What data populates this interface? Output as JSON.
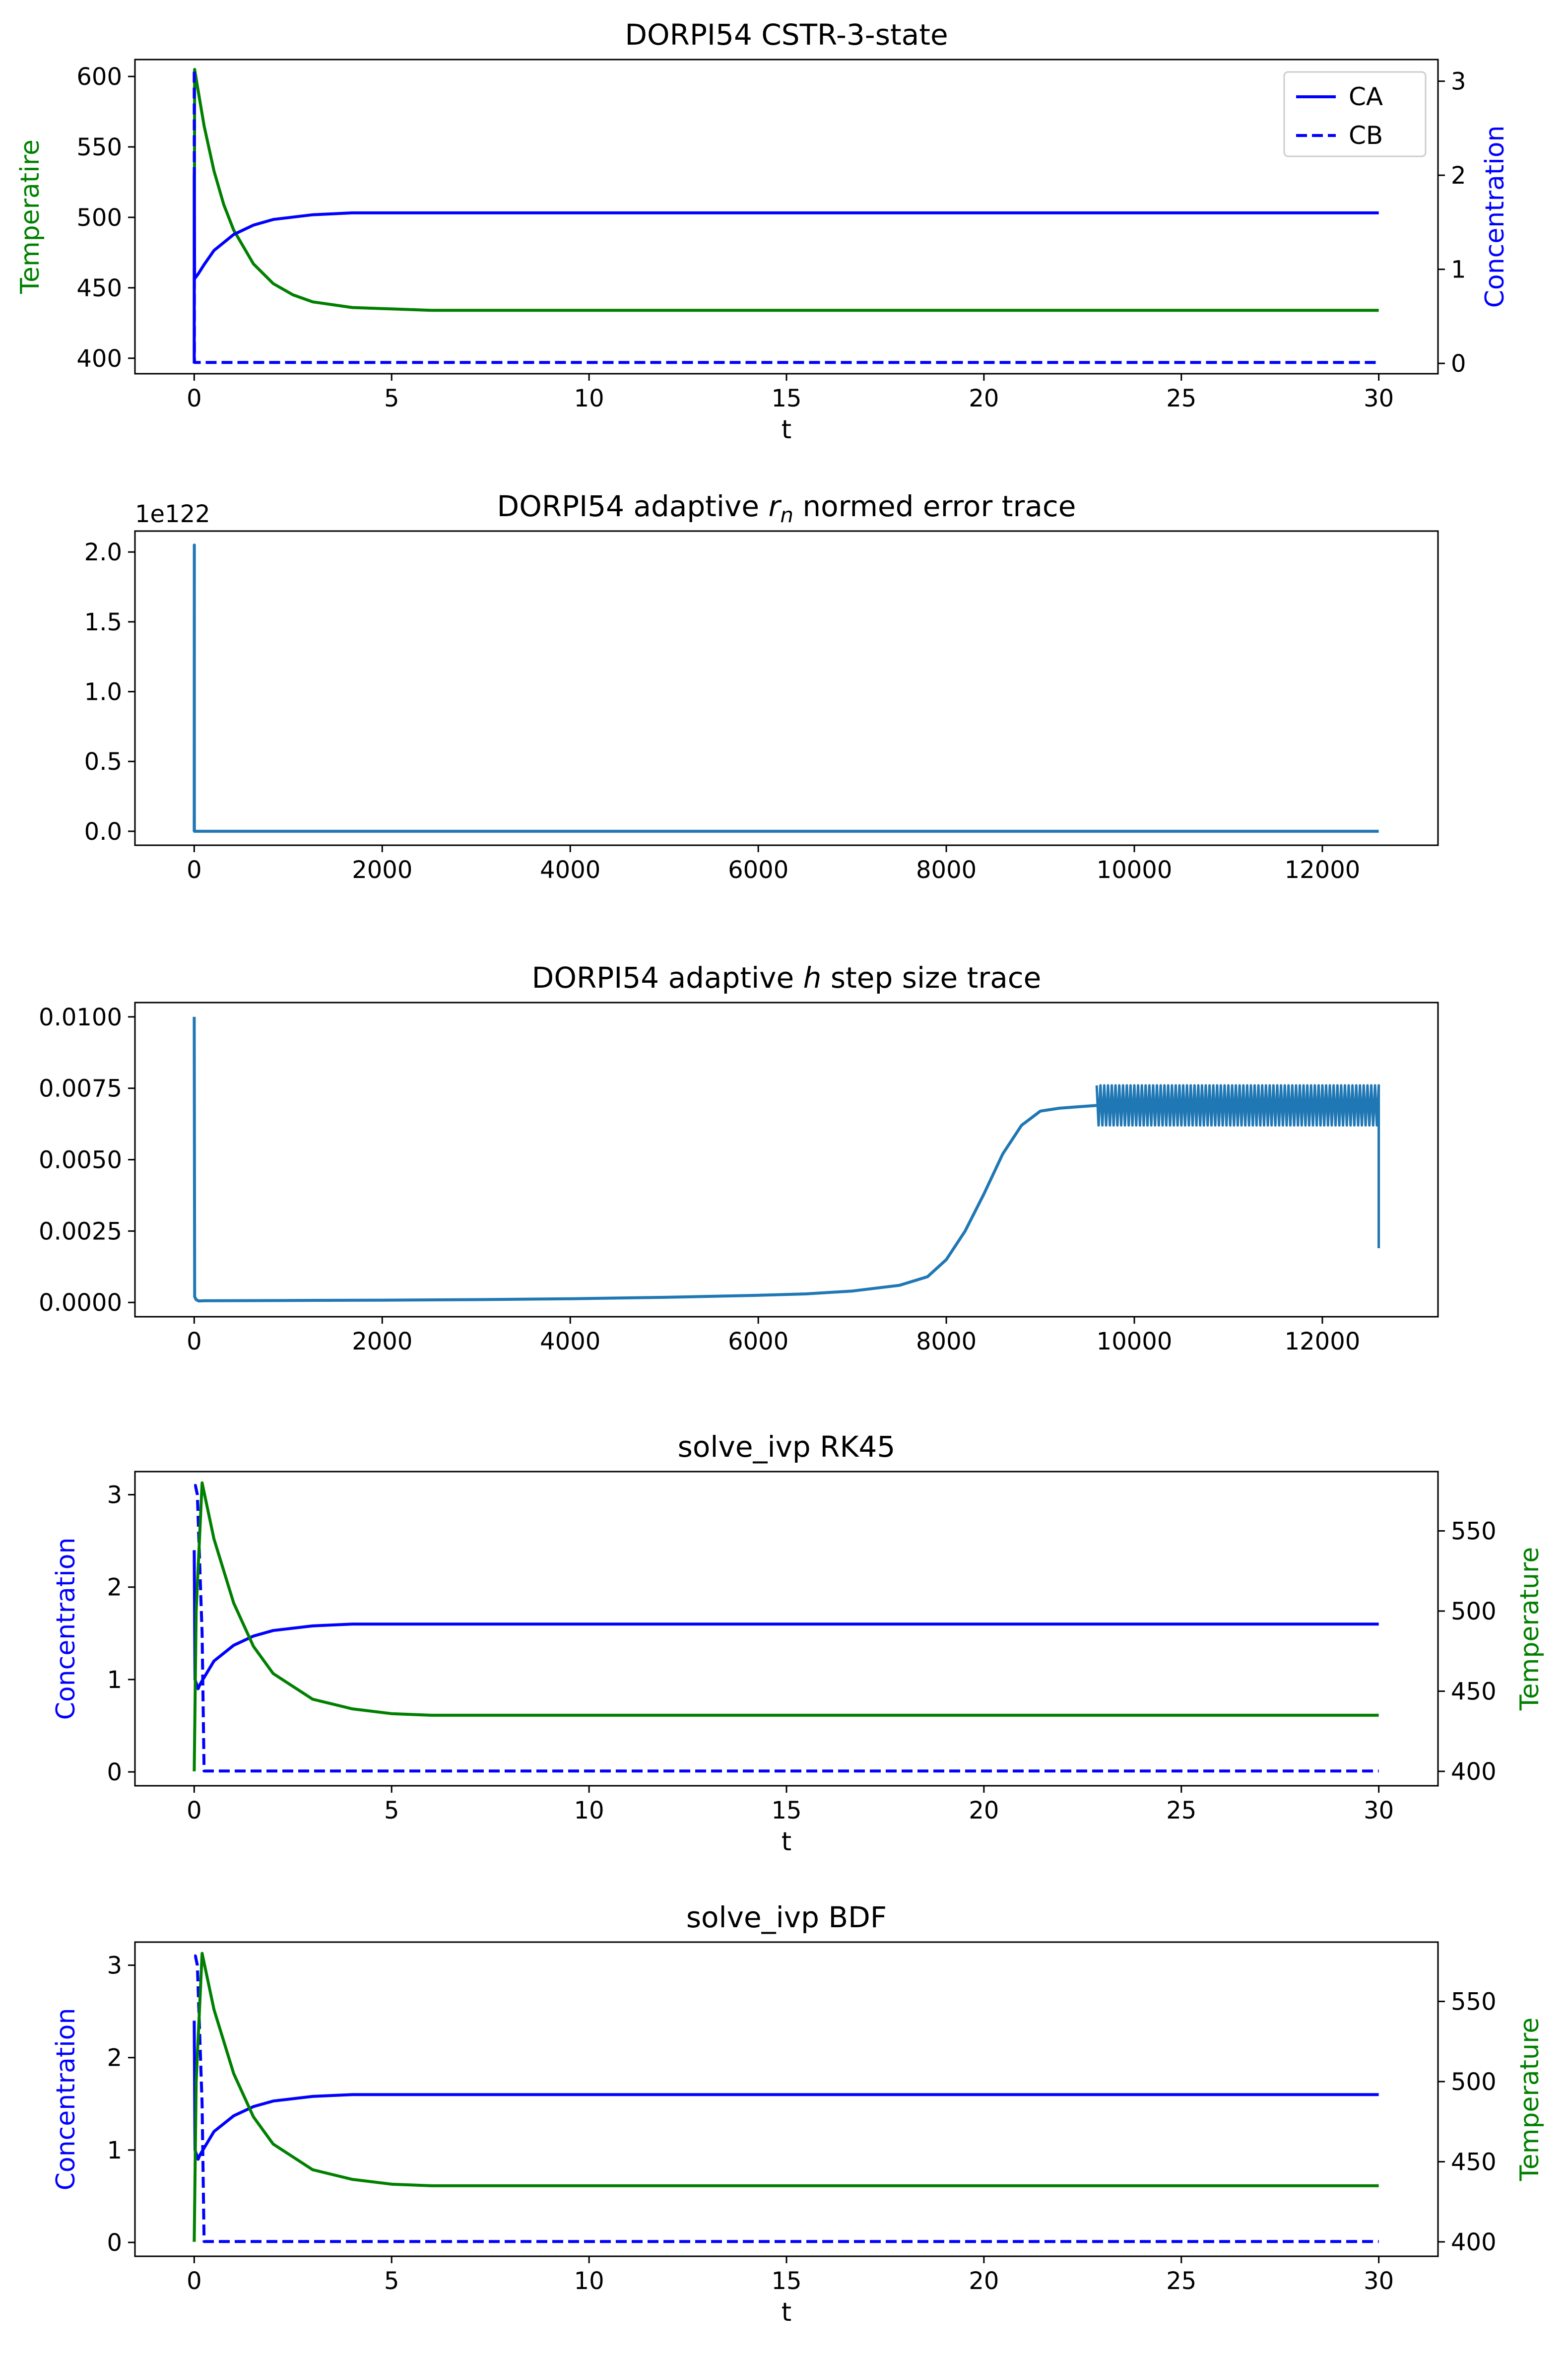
{
  "colors": {
    "temperature": "#008000",
    "concentration": "#0000ff",
    "trace": "#1f77b4",
    "axes": "#000000"
  },
  "chart_data": [
    {
      "type": "line",
      "title": "DORPI54 CSTR-3-state",
      "xlabel": "t",
      "xlim": [
        -1.5,
        31.5
      ],
      "xticks": [
        0,
        5,
        10,
        15,
        20,
        25,
        30
      ],
      "y_left": {
        "label": "Temperatire",
        "label_color": "#008000",
        "lim": [
          389,
          612
        ],
        "ticks": [
          400,
          450,
          500,
          550,
          600
        ]
      },
      "y_right": {
        "label": "Concentration",
        "label_color": "#0000ff",
        "lim": [
          -0.11,
          3.23
        ],
        "ticks": [
          0,
          1,
          2,
          3
        ]
      },
      "legend": {
        "position": "upper-right",
        "entries": [
          "CA",
          "CB"
        ]
      },
      "series": [
        {
          "axis": "left",
          "color": "#008000",
          "style": "solid",
          "x": [
            0,
            0.01,
            0.1,
            0.25,
            0.5,
            0.75,
            1,
            1.5,
            2,
            2.5,
            3,
            4,
            5,
            6,
            8,
            10,
            15,
            20,
            25,
            30
          ],
          "y": [
            400,
            605,
            590,
            565,
            533,
            509,
            491,
            467,
            453,
            445,
            440,
            436,
            435,
            434,
            434,
            434,
            434,
            434,
            434,
            434
          ]
        },
        {
          "axis": "right",
          "name": "CA",
          "color": "#0000ff",
          "style": "solid",
          "x": [
            0,
            0.001,
            0.01,
            0.1,
            0.25,
            0.5,
            1,
            1.5,
            2,
            3,
            4,
            5,
            6,
            8,
            10,
            15,
            20,
            25,
            30
          ],
          "y": [
            0,
            2.0,
            0.9,
            0.95,
            1.05,
            1.2,
            1.37,
            1.47,
            1.53,
            1.58,
            1.6,
            1.6,
            1.6,
            1.6,
            1.6,
            1.6,
            1.6,
            1.6,
            1.6
          ]
        },
        {
          "axis": "right",
          "name": "CB",
          "color": "#0000ff",
          "style": "dashed",
          "x": [
            0,
            0.001,
            0.005,
            0.01,
            0.1,
            1,
            5,
            10,
            15,
            20,
            25,
            30
          ],
          "y": [
            3.1,
            3.1,
            0.05,
            0.01,
            0.01,
            0.01,
            0.01,
            0.01,
            0.01,
            0.01,
            0.01,
            0.01
          ]
        }
      ]
    },
    {
      "type": "line",
      "title_prefix": "DORPI54 adaptive ",
      "title_symbol": "r",
      "title_subscript": "n",
      "title_suffix": " normed error trace",
      "offset_text": "1e122",
      "xlim": [
        -630,
        13230
      ],
      "xticks": [
        0,
        2000,
        4000,
        6000,
        8000,
        10000,
        12000
      ],
      "ylim": [
        -0.1,
        2.15
      ],
      "yticks": [
        "0.0",
        "0.5",
        "1.0",
        "1.5",
        "2.0"
      ],
      "series": [
        {
          "color": "#1f77b4",
          "style": "solid",
          "x": [
            0,
            1,
            2,
            3,
            12600
          ],
          "y": [
            0,
            2.05,
            0,
            0,
            0
          ]
        }
      ]
    },
    {
      "type": "line",
      "title_prefix": "DORPI54 adaptive ",
      "title_symbol": "h",
      "title_suffix": " step size trace",
      "xlim": [
        -630,
        13230
      ],
      "xticks": [
        0,
        2000,
        4000,
        6000,
        8000,
        10000,
        12000
      ],
      "ylim": [
        -0.0005,
        0.0105
      ],
      "yticks": [
        "0.0000",
        "0.0025",
        "0.0050",
        "0.0075",
        "0.0100"
      ],
      "series": [
        {
          "color": "#1f77b4",
          "style": "solid",
          "x": [
            0,
            5,
            20,
            50,
            100,
            1000,
            2000,
            3000,
            4000,
            5000,
            6000,
            6500,
            7000,
            7500,
            7800,
            8000,
            8200,
            8400,
            8600,
            8800,
            9000,
            9200,
            9400,
            9600
          ],
          "y": [
            0.01,
            0.0002,
            0.0001,
            5e-05,
            6e-05,
            7e-05,
            8e-05,
            0.0001,
            0.00013,
            0.00018,
            0.00025,
            0.0003,
            0.0004,
            0.0006,
            0.0009,
            0.0015,
            0.0025,
            0.0038,
            0.0052,
            0.0062,
            0.0067,
            0.0068,
            0.00685,
            0.0069
          ]
        },
        {
          "color": "#1f77b4",
          "style": "oscillating-band",
          "x_range": [
            9600,
            12600
          ],
          "y_min": 0.0062,
          "y_max": 0.0076,
          "end_drop": 0.0019
        }
      ]
    },
    {
      "type": "line",
      "title": "solve_ivp RK45",
      "xlabel": "t",
      "xlim": [
        -1.5,
        31.5
      ],
      "xticks": [
        0,
        5,
        10,
        15,
        20,
        25,
        30
      ],
      "y_left": {
        "label": "Concentration",
        "label_color": "#0000ff",
        "lim": [
          -0.15,
          3.25
        ],
        "ticks": [
          0,
          1,
          2,
          3
        ]
      },
      "y_right": {
        "label": "Temperature",
        "label_color": "#008000",
        "lim": [
          391,
          587
        ],
        "ticks": [
          400,
          450,
          500,
          550
        ]
      },
      "series": [
        {
          "axis": "left",
          "color": "#0000ff",
          "style": "solid",
          "x": [
            0,
            0.02,
            0.1,
            0.15,
            0.5,
            1,
            1.5,
            2,
            3,
            4,
            5,
            6,
            8,
            10,
            15,
            20,
            25,
            30
          ],
          "y": [
            2.4,
            1.0,
            0.9,
            0.95,
            1.2,
            1.37,
            1.47,
            1.53,
            1.58,
            1.6,
            1.6,
            1.6,
            1.6,
            1.6,
            1.6,
            1.6,
            1.6,
            1.6
          ]
        },
        {
          "axis": "left",
          "color": "#0000ff",
          "style": "dashed",
          "x": [
            0,
            0.03,
            0.08,
            0.2,
            0.25,
            1,
            5,
            10,
            15,
            20,
            25,
            30
          ],
          "y": [
            3.1,
            3.1,
            3.0,
            1.5,
            0.01,
            0.01,
            0.01,
            0.01,
            0.01,
            0.01,
            0.01,
            0.01
          ]
        },
        {
          "axis": "right",
          "color": "#008000",
          "style": "solid",
          "x": [
            0,
            0.05,
            0.2,
            0.5,
            1,
            1.5,
            2,
            3,
            4,
            5,
            6,
            8,
            10,
            15,
            20,
            25,
            30
          ],
          "y": [
            400,
            500,
            580,
            545,
            505,
            478,
            461,
            445,
            439,
            436,
            435,
            435,
            435,
            435,
            435,
            435,
            435
          ]
        }
      ]
    },
    {
      "type": "line",
      "title": "solve_ivp BDF",
      "xlabel": "t",
      "xlim": [
        -1.5,
        31.5
      ],
      "xticks": [
        0,
        5,
        10,
        15,
        20,
        25,
        30
      ],
      "y_left": {
        "label": "Concentration",
        "label_color": "#0000ff",
        "lim": [
          -0.15,
          3.25
        ],
        "ticks": [
          0,
          1,
          2,
          3
        ]
      },
      "y_right": {
        "label": "Temperature",
        "label_color": "#008000",
        "lim": [
          391,
          587
        ],
        "ticks": [
          400,
          450,
          500,
          550
        ]
      },
      "series": [
        {
          "axis": "left",
          "color": "#0000ff",
          "style": "solid",
          "x": [
            0,
            0.02,
            0.1,
            0.15,
            0.5,
            1,
            1.5,
            2,
            3,
            4,
            5,
            6,
            8,
            10,
            15,
            20,
            25,
            30
          ],
          "y": [
            2.4,
            1.0,
            0.9,
            0.95,
            1.2,
            1.37,
            1.47,
            1.53,
            1.58,
            1.6,
            1.6,
            1.6,
            1.6,
            1.6,
            1.6,
            1.6,
            1.6,
            1.6
          ]
        },
        {
          "axis": "left",
          "color": "#0000ff",
          "style": "dashed",
          "x": [
            0,
            0.03,
            0.08,
            0.2,
            0.25,
            1,
            5,
            10,
            15,
            20,
            25,
            30
          ],
          "y": [
            3.1,
            3.1,
            3.0,
            1.5,
            0.01,
            0.01,
            0.01,
            0.01,
            0.01,
            0.01,
            0.01,
            0.01
          ]
        },
        {
          "axis": "right",
          "color": "#008000",
          "style": "solid",
          "x": [
            0,
            0.05,
            0.2,
            0.5,
            1,
            1.5,
            2,
            3,
            4,
            5,
            6,
            8,
            10,
            15,
            20,
            25,
            30
          ],
          "y": [
            400,
            500,
            580,
            545,
            505,
            478,
            461,
            445,
            439,
            436,
            435,
            435,
            435,
            435,
            435,
            435,
            435
          ]
        }
      ]
    }
  ]
}
